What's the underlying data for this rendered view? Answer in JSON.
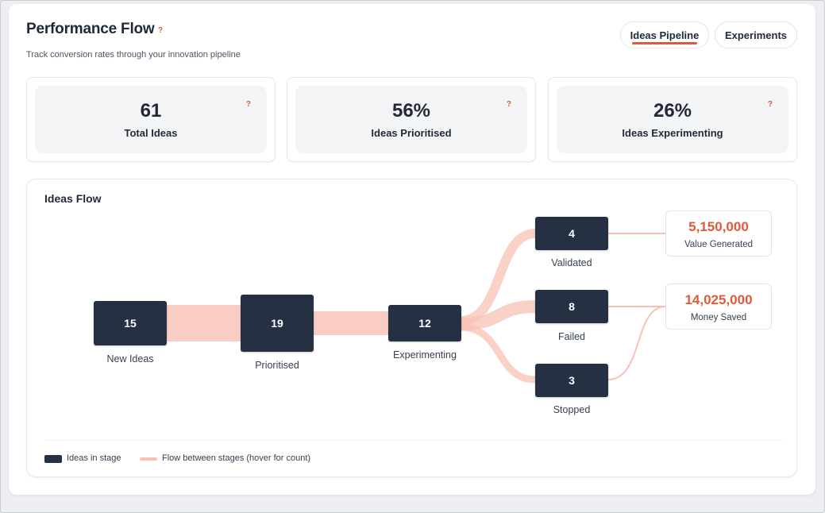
{
  "header": {
    "title": "Performance Flow",
    "help": "?",
    "subtitle": "Track conversion rates through your innovation pipeline"
  },
  "tabs": [
    {
      "label": "Ideas Pipeline",
      "active": true
    },
    {
      "label": "Experiments",
      "active": false
    }
  ],
  "stats": [
    {
      "value": "61",
      "label": "Total Ideas",
      "help": "?"
    },
    {
      "value": "56%",
      "label": "Ideas Prioritised",
      "help": "?"
    },
    {
      "value": "26%",
      "label": "Ideas Experimenting",
      "help": "?"
    }
  ],
  "flow": {
    "title": "Ideas Flow",
    "nodes": [
      {
        "id": "new",
        "value": "15",
        "label": "New Ideas"
      },
      {
        "id": "prioritised",
        "value": "19",
        "label": "Prioritised"
      },
      {
        "id": "experimenting",
        "value": "12",
        "label": "Experimenting"
      },
      {
        "id": "validated",
        "value": "4",
        "label": "Validated"
      },
      {
        "id": "failed",
        "value": "8",
        "label": "Failed"
      },
      {
        "id": "stopped",
        "value": "3",
        "label": "Stopped"
      }
    ],
    "outcomes": [
      {
        "value": "5,150,000",
        "label": "Value Generated"
      },
      {
        "value": "14,025,000",
        "label": "Money Saved"
      }
    ],
    "legend": {
      "stage": "Ideas in stage",
      "flow": "Flow between stages (hover for count)"
    }
  },
  "colors": {
    "accent": "#e05a3a",
    "node": "#253043",
    "flow": "#f7c1b4"
  }
}
